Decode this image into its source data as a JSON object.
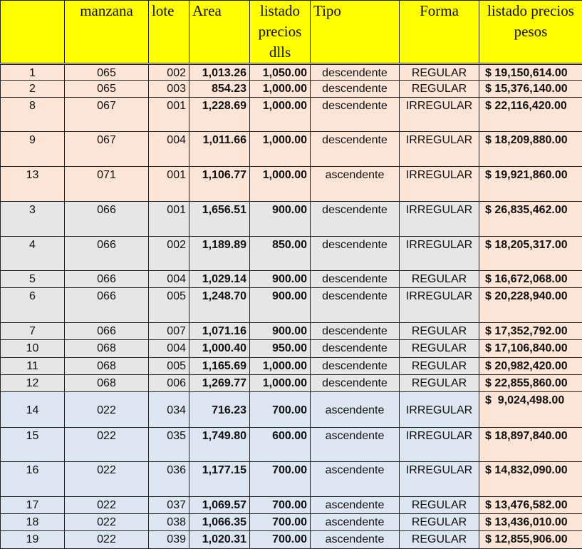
{
  "headers": [
    "",
    "manzana",
    "lote",
    "Area",
    "listado precios dlls",
    "Tipo",
    "Forma",
    "listado precios pesos"
  ],
  "row_colors": {
    "peach": "#fce4d6",
    "gray": "#e7e6e6",
    "blue": "#dce6f1",
    "header": "#ffff00"
  },
  "rows": [
    {
      "n": "1",
      "manzana": "065",
      "lote": "002",
      "area": "1,013.26",
      "dlls": "1,050.00",
      "tipo": "descendente",
      "forma": "REGULAR",
      "pesos": "$ 19,150,614.00",
      "group": "peach"
    },
    {
      "n": "2",
      "manzana": "065",
      "lote": "003",
      "area": "854.23",
      "dlls": "1,000.00",
      "tipo": "descendente",
      "forma": "REGULAR",
      "pesos": "$ 15,376,140.00",
      "group": "peach"
    },
    {
      "n": "8",
      "manzana": "067",
      "lote": "001",
      "area": "1,228.69",
      "dlls": "1,000.00",
      "tipo": "descendente",
      "forma": "IRREGULAR",
      "pesos": "$ 22,116,420.00",
      "group": "peach"
    },
    {
      "n": "9",
      "manzana": "067",
      "lote": "004",
      "area": "1,011.66",
      "dlls": "1,000.00",
      "tipo": "descendente",
      "forma": "IRREGULAR",
      "pesos": "$ 18,209,880.00",
      "group": "peach"
    },
    {
      "n": "13",
      "manzana": "071",
      "lote": "001",
      "area": "1,106.77",
      "dlls": "1,000.00",
      "tipo": "ascendente",
      "forma": "IRREGULAR",
      "pesos": "$ 19,921,860.00",
      "group": "peach"
    },
    {
      "n": "3",
      "manzana": "066",
      "lote": "001",
      "area": "1,656.51",
      "dlls": "900.00",
      "tipo": "descendente",
      "forma": "IRREGULAR",
      "pesos": "$ 26,835,462.00",
      "group": "gray"
    },
    {
      "n": "4",
      "manzana": "066",
      "lote": "002",
      "area": "1,189.89",
      "dlls": "850.00",
      "tipo": "descendente",
      "forma": "IRREGULAR",
      "pesos": "$ 18,205,317.00",
      "group": "gray"
    },
    {
      "n": "5",
      "manzana": "066",
      "lote": "004",
      "area": "1,029.14",
      "dlls": "900.00",
      "tipo": "descendente",
      "forma": "REGULAR",
      "pesos": "$ 16,672,068.00",
      "group": "gray"
    },
    {
      "n": "6",
      "manzana": "066",
      "lote": "005",
      "area": "1,248.70",
      "dlls": "900.00",
      "tipo": "descendente",
      "forma": "IRREGULAR",
      "pesos": "$ 20,228,940.00",
      "group": "gray"
    },
    {
      "n": "7",
      "manzana": "066",
      "lote": "007",
      "area": "1,071.16",
      "dlls": "900.00",
      "tipo": "descendente",
      "forma": "REGULAR",
      "pesos": "$ 17,352,792.00",
      "group": "gray"
    },
    {
      "n": "10",
      "manzana": "068",
      "lote": "004",
      "area": "1,000.40",
      "dlls": "950.00",
      "tipo": "descendente",
      "forma": "REGULAR",
      "pesos": "$ 17,106,840.00",
      "group": "gray"
    },
    {
      "n": "11",
      "manzana": "068",
      "lote": "005",
      "area": "1,165.69",
      "dlls": "1,000.00",
      "tipo": "descendente",
      "forma": "REGULAR",
      "pesos": "$ 20,982,420.00",
      "group": "gray"
    },
    {
      "n": "12",
      "manzana": "068",
      "lote": "006",
      "area": "1,269.77",
      "dlls": "1,000.00",
      "tipo": "descendente",
      "forma": "REGULAR",
      "pesos": "$ 22,855,860.00",
      "group": "gray"
    },
    {
      "n": "14",
      "manzana": "022",
      "lote": "034",
      "area": "716.23",
      "dlls": "700.00",
      "tipo": "ascendente",
      "forma": "IRREGULAR",
      "pesos": "$  9,024,498.00",
      "group": "blue"
    },
    {
      "n": "15",
      "manzana": "022",
      "lote": "035",
      "area": "1,749.80",
      "dlls": "600.00",
      "tipo": "ascendente",
      "forma": "IRREGULAR",
      "pesos": "$ 18,897,840.00",
      "group": "blue"
    },
    {
      "n": "16",
      "manzana": "022",
      "lote": "036",
      "area": "1,177.15",
      "dlls": "700.00",
      "tipo": "ascendente",
      "forma": "IRREGULAR",
      "pesos": "$ 14,832,090.00",
      "group": "blue"
    },
    {
      "n": "17",
      "manzana": "022",
      "lote": "037",
      "area": "1,069.57",
      "dlls": "700.00",
      "tipo": "ascendente",
      "forma": "REGULAR",
      "pesos": "$ 13,476,582.00",
      "group": "blue"
    },
    {
      "n": "18",
      "manzana": "022",
      "lote": "038",
      "area": "1,066.35",
      "dlls": "700.00",
      "tipo": "ascendente",
      "forma": "REGULAR",
      "pesos": "$ 13,436,010.00",
      "group": "blue"
    },
    {
      "n": "19",
      "manzana": "022",
      "lote": "039",
      "area": "1,020.31",
      "dlls": "700.00",
      "tipo": "ascendente",
      "forma": "REGULAR",
      "pesos": "$ 12,855,906.00",
      "group": "blue"
    }
  ]
}
